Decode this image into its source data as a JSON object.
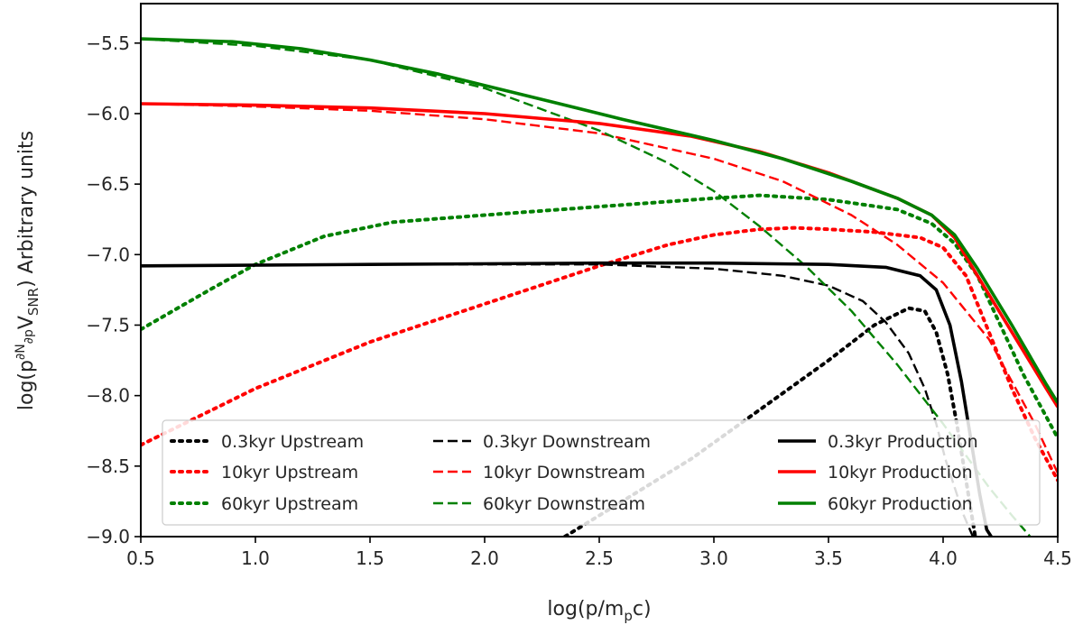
{
  "chart_data": {
    "type": "line",
    "xlabel": "log(p/m",
    "xlabel_sub": "p",
    "xlabel_tail": "c)",
    "ylabel_parts": {
      "prefix": "log(p",
      "sup_num": "∂N",
      "sup_den": "∂p",
      "mid": "V",
      "sub": "SNR",
      "suffix": ") Arbitrary units"
    },
    "xlim": [
      0.5,
      4.5
    ],
    "ylim": [
      -9.0,
      -5.2
    ],
    "xticks": [
      "0.5",
      "1.0",
      "1.5",
      "2.0",
      "2.5",
      "3.0",
      "3.5",
      "4.0",
      "4.5"
    ],
    "yticks": [
      "-5.5",
      "-6.0",
      "-6.5",
      "-7.0",
      "-7.5",
      "-8.0",
      "-8.5",
      "-9.0"
    ],
    "xtick_values": [
      0.5,
      1.0,
      1.5,
      2.0,
      2.5,
      3.0,
      3.5,
      4.0,
      4.5
    ],
    "ytick_values": [
      -5.5,
      -6.0,
      -6.5,
      -7.0,
      -7.5,
      -8.0,
      -8.5,
      -9.0
    ],
    "colors": {
      "black": "#000000",
      "red": "#ff0000",
      "green": "#008000",
      "axis": "#000000",
      "text": "#262626"
    },
    "series": [
      {
        "name": "0.3kyr Upstream",
        "color": "black",
        "style": "dotted",
        "x": [
          2.35,
          2.6,
          2.9,
          3.2,
          3.5,
          3.7,
          3.85,
          3.92,
          3.97,
          4.02,
          4.06,
          4.1,
          4.14
        ],
        "y": [
          -9.0,
          -8.75,
          -8.45,
          -8.1,
          -7.75,
          -7.5,
          -7.38,
          -7.4,
          -7.55,
          -7.85,
          -8.2,
          -8.6,
          -9.0
        ]
      },
      {
        "name": "10kyr Upstream",
        "color": "red",
        "style": "dotted",
        "x": [
          0.5,
          1.0,
          1.5,
          2.0,
          2.5,
          2.8,
          3.0,
          3.2,
          3.35,
          3.5,
          3.7,
          3.9,
          4.0,
          4.1,
          4.2,
          4.3,
          4.4,
          4.5
        ],
        "y": [
          -8.35,
          -7.95,
          -7.62,
          -7.35,
          -7.08,
          -6.93,
          -6.86,
          -6.82,
          -6.81,
          -6.82,
          -6.84,
          -6.88,
          -6.95,
          -7.15,
          -7.55,
          -7.95,
          -8.3,
          -8.6
        ]
      },
      {
        "name": "60kyr Upstream",
        "color": "green",
        "style": "dotted",
        "x": [
          0.5,
          0.8,
          1.0,
          1.3,
          1.6,
          2.0,
          2.5,
          3.0,
          3.2,
          3.5,
          3.8,
          3.95,
          4.05,
          4.15,
          4.25,
          4.35,
          4.45,
          4.5
        ],
        "y": [
          -7.53,
          -7.25,
          -7.07,
          -6.87,
          -6.77,
          -6.72,
          -6.66,
          -6.6,
          -6.58,
          -6.61,
          -6.68,
          -6.78,
          -6.92,
          -7.15,
          -7.5,
          -7.85,
          -8.15,
          -8.3
        ]
      },
      {
        "name": "0.3kyr Downstream",
        "color": "black",
        "style": "dashed",
        "x": [
          0.5,
          1.5,
          2.5,
          3.0,
          3.3,
          3.5,
          3.65,
          3.75,
          3.85,
          3.92,
          3.97,
          4.01,
          4.05,
          4.09,
          4.13
        ],
        "y": [
          -7.08,
          -7.07,
          -7.07,
          -7.1,
          -7.15,
          -7.22,
          -7.33,
          -7.48,
          -7.7,
          -7.95,
          -8.2,
          -8.45,
          -8.65,
          -8.85,
          -9.0
        ]
      },
      {
        "name": "10kyr Downstream",
        "color": "red",
        "style": "dashed",
        "x": [
          0.5,
          1.0,
          1.5,
          2.0,
          2.5,
          3.0,
          3.3,
          3.6,
          3.8,
          4.0,
          4.2,
          4.4,
          4.5
        ],
        "y": [
          -5.93,
          -5.95,
          -5.98,
          -6.04,
          -6.14,
          -6.32,
          -6.48,
          -6.72,
          -6.93,
          -7.2,
          -7.6,
          -8.2,
          -8.55
        ]
      },
      {
        "name": "60kyr Downstream",
        "color": "green",
        "style": "dashed",
        "x": [
          0.5,
          1.0,
          1.5,
          2.0,
          2.5,
          2.8,
          3.0,
          3.2,
          3.4,
          3.6,
          3.8,
          4.0,
          4.2,
          4.3,
          4.38
        ],
        "y": [
          -5.47,
          -5.52,
          -5.62,
          -5.82,
          -6.12,
          -6.35,
          -6.55,
          -6.8,
          -7.08,
          -7.4,
          -7.78,
          -8.2,
          -8.65,
          -8.85,
          -9.0
        ]
      },
      {
        "name": "0.3kyr Production",
        "color": "black",
        "style": "solid",
        "x": [
          0.5,
          1.5,
          2.5,
          3.0,
          3.5,
          3.75,
          3.9,
          3.97,
          4.03,
          4.08,
          4.12,
          4.16,
          4.19,
          4.21
        ],
        "y": [
          -7.08,
          -7.07,
          -7.06,
          -7.06,
          -7.07,
          -7.09,
          -7.15,
          -7.25,
          -7.5,
          -7.9,
          -8.3,
          -8.7,
          -8.95,
          -9.0
        ]
      },
      {
        "name": "10kyr Production",
        "color": "red",
        "style": "solid",
        "x": [
          0.5,
          1.0,
          1.5,
          2.0,
          2.5,
          2.9,
          3.2,
          3.5,
          3.8,
          3.95,
          4.05,
          4.15,
          4.3,
          4.45,
          4.5
        ],
        "y": [
          -5.93,
          -5.94,
          -5.96,
          -6.0,
          -6.07,
          -6.16,
          -6.27,
          -6.42,
          -6.6,
          -6.72,
          -6.88,
          -7.15,
          -7.55,
          -7.95,
          -8.08
        ]
      },
      {
        "name": "60kyr Production",
        "color": "green",
        "style": "solid",
        "x": [
          0.5,
          0.9,
          1.2,
          1.5,
          1.8,
          2.0,
          2.3,
          2.6,
          3.0,
          3.3,
          3.6,
          3.8,
          3.95,
          4.05,
          4.15,
          4.3,
          4.45,
          4.5
        ],
        "y": [
          -5.47,
          -5.49,
          -5.54,
          -5.62,
          -5.72,
          -5.8,
          -5.92,
          -6.04,
          -6.19,
          -6.32,
          -6.48,
          -6.6,
          -6.72,
          -6.86,
          -7.1,
          -7.5,
          -7.92,
          -8.05
        ]
      }
    ],
    "legend": {
      "placement": "lower-center",
      "columns": [
        [
          "0.3kyr Upstream",
          "10kyr Upstream",
          "60kyr Upstream"
        ],
        [
          "0.3kyr Downstream",
          "10kyr Downstream",
          "60kyr Downstream"
        ],
        [
          "0.3kyr Production",
          "10kyr Production",
          "60kyr Production"
        ]
      ]
    }
  }
}
